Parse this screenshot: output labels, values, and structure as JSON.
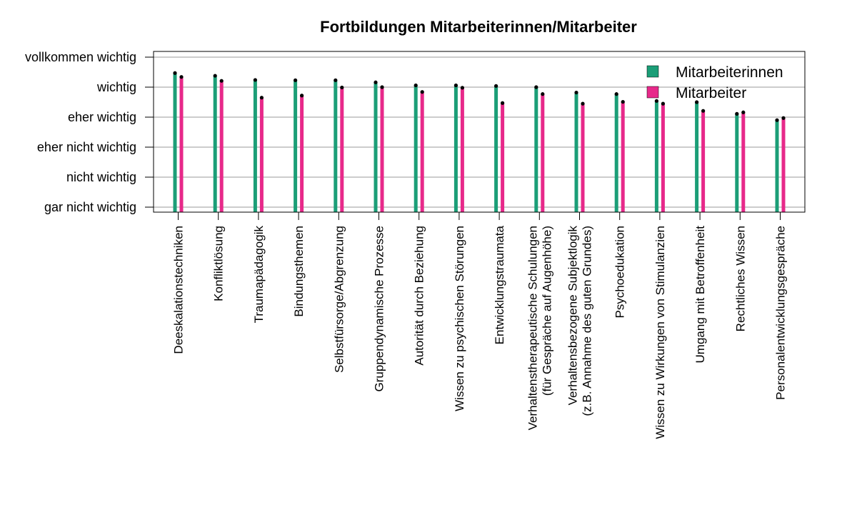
{
  "chart_data": {
    "type": "bar",
    "title": "Fortbildungen Mitarbeiterinnen/Mitarbeiter",
    "xlabel": "",
    "ylabel": "",
    "y_levels": [
      "gar nicht wichtig",
      "nicht wichtig",
      "eher nicht wichtig",
      "eher wichtig",
      "wichtig",
      "vollkommen wichtig"
    ],
    "ylim": [
      1,
      6
    ],
    "grid": true,
    "legend_position": "top-right",
    "categories": [
      [
        "Deeskalationstechniken"
      ],
      [
        "Konfliktlösung"
      ],
      [
        "Traumapädagogik"
      ],
      [
        "Bindungsthemen"
      ],
      [
        "Selbstfürsorge/Abgrenzung"
      ],
      [
        "Gruppendynamische Prozesse"
      ],
      [
        "Autorität durch Beziehung"
      ],
      [
        "Wissen zu psychischen Störungen"
      ],
      [
        "Entwicklungstraumata"
      ],
      [
        "Verhaltenstherapeutische Schulungen",
        "(für Gespräche auf Augenhöhe)"
      ],
      [
        "Verhaltensbezogene Subjektlogik",
        "(z.B. Annahme des guten Grundes)"
      ],
      [
        "Psychoedukation"
      ],
      [
        "Wissen zu Wirkungen von Stimulanzien"
      ],
      [
        "Umgang mit Betroffenheit"
      ],
      [
        "Rechtliches Wissen"
      ],
      [
        "Personalentwicklungsgespräche"
      ]
    ],
    "series": [
      {
        "name": "Mitarbeiterinnen",
        "color": "#1b9e77",
        "values": [
          5.47,
          5.38,
          5.24,
          5.23,
          5.23,
          5.16,
          5.06,
          5.06,
          5.04,
          5.0,
          4.82,
          4.77,
          4.54,
          4.5,
          4.11,
          3.9
        ]
      },
      {
        "name": "Mitarbeiter",
        "color": "#e7298a",
        "values": [
          5.34,
          5.21,
          4.65,
          4.72,
          4.99,
          5.0,
          4.84,
          4.98,
          4.47,
          4.77,
          4.45,
          4.51,
          4.45,
          4.21,
          4.16,
          3.97
        ]
      }
    ]
  }
}
